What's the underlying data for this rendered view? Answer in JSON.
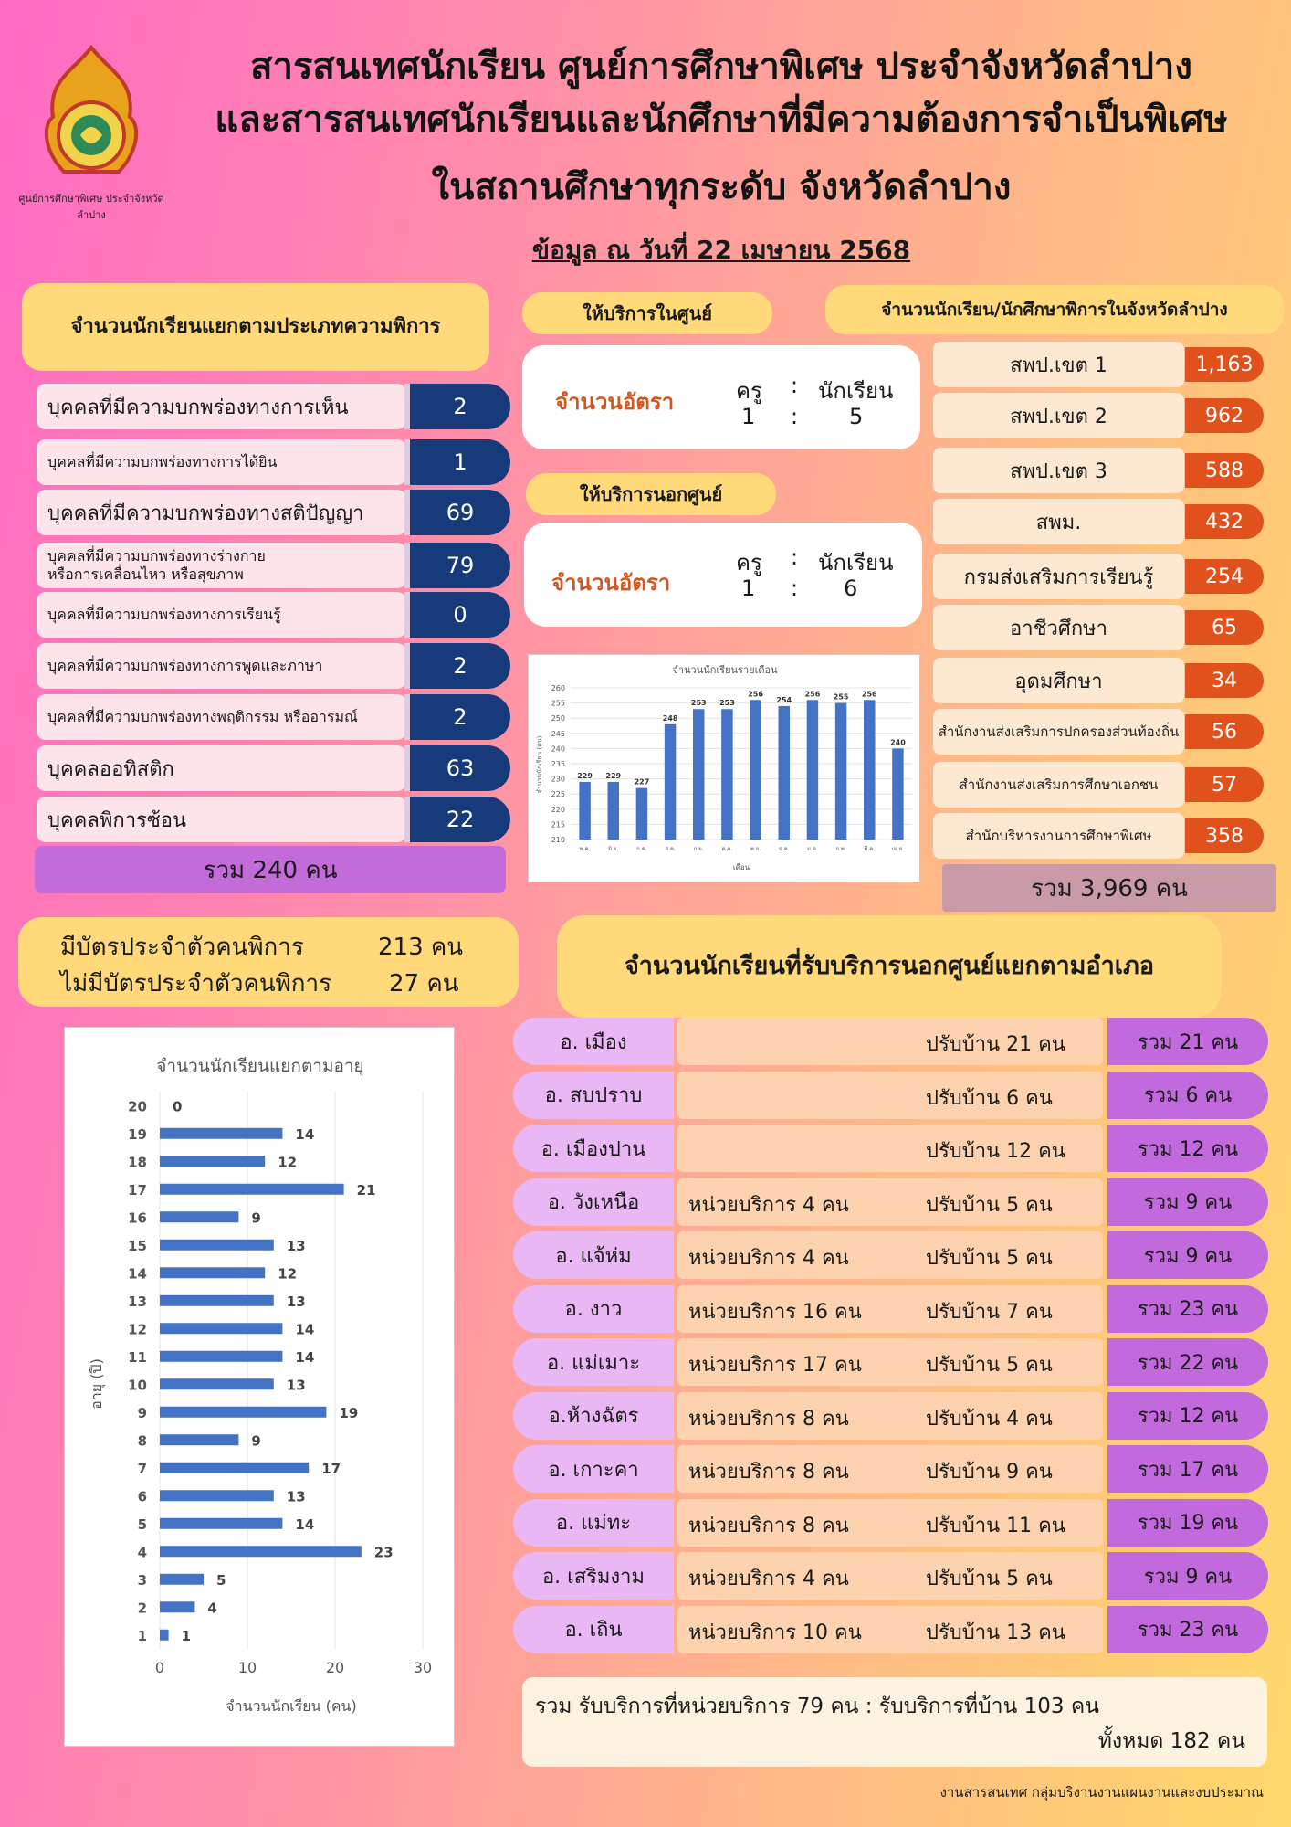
{
  "header": {
    "logo_text": "ศูนย์การศึกษาพิเศษ ประจำจังหวัดลำปาง",
    "title_line1": "สารสนเทศนักเรียน ศูนย์การศึกษาพิเศษ ประจำจังหวัดลำปาง",
    "title_line2": "และสารสนเทศนักเรียนและนักศึกษาที่มีความต้องการจำเป็นพิเศษ",
    "title_line3": "ในสถานศึกษาทุกระดับ จังหวัดลำปาง",
    "date": "ข้อมูล ณ วันที่ 22 เมษายน 2568"
  },
  "disability": {
    "heading": "จำนวนนักเรียนแยกตามประเภทความพิการ",
    "rows": [
      {
        "label": "บุคคลที่มีความบกพร่องทางการเห็น",
        "value": "2"
      },
      {
        "label": "บุคคลที่มีความบกพร่องทางการได้ยิน",
        "value": "1"
      },
      {
        "label": "บุคคลที่มีความบกพร่องทางสติปัญญา",
        "value": "69"
      },
      {
        "label": "บุคคลที่มีความบกพร่องทางร่างกาย\nหรือการเคลื่อนไหว หรือสุขภาพ",
        "value": "79"
      },
      {
        "label": "บุคคลที่มีความบกพร่องทางการเรียนรู้",
        "value": "0"
      },
      {
        "label": "บุคคลที่มีความบกพร่องทางการพูดและภาษา",
        "value": "2"
      },
      {
        "label": "บุคคลที่มีความบกพร่องทางพฤติกรรม หรืออารมณ์",
        "value": "2"
      },
      {
        "label": "บุคคลออทิสติก",
        "value": "63"
      },
      {
        "label": "บุคคลพิการซ้อน",
        "value": "22"
      }
    ],
    "total": "รวม   240 คน"
  },
  "card_status": {
    "with_card_label": "มีบัตรประจำตัวคนพิการ",
    "with_card_value": "213 คน",
    "without_card_label": "ไม่มีบัตรประจำตัวคนพิการ",
    "without_card_value": "27  คน"
  },
  "in_center": {
    "heading": "ให้บริการในศูนย์",
    "ratio_label": "จำนวนอัตรา",
    "teacher_label": "ครู",
    "student_label": "นักเรียน",
    "colon": ":",
    "teacher_value": "1",
    "student_value": "5"
  },
  "out_center": {
    "heading": "ให้บริการนอกศูนย์",
    "ratio_label": "จำนวนอัตรา",
    "teacher_label": "ครู",
    "student_label": "นักเรียน",
    "colon": ":",
    "teacher_value": "1",
    "student_value": "6"
  },
  "province": {
    "heading": "จำนวนนักเรียน/นักศึกษาพิการในจังหวัดลำปาง",
    "rows": [
      {
        "label": "สพป.เขต 1",
        "value": "1,163"
      },
      {
        "label": "สพป.เขต 2",
        "value": "962"
      },
      {
        "label": "สพป.เขต 3",
        "value": "588"
      },
      {
        "label": "สพม.",
        "value": "432"
      },
      {
        "label": "กรมส่งเสริมการเรียนรู้",
        "value": "254"
      },
      {
        "label": "อาชีวศึกษา",
        "value": "65"
      },
      {
        "label": "อุดมศึกษา",
        "value": "34"
      },
      {
        "label": "สำนักงานส่งเสริมการปกครองส่วนท้องถิ่น",
        "value": "56"
      },
      {
        "label": "สำนักงานส่งเสริมการศึกษาเอกชน",
        "value": "57"
      },
      {
        "label": "สำนักบริหารงานการศึกษาพิเศษ",
        "value": "358"
      }
    ],
    "total": "รวม 3,969 คน"
  },
  "districts": {
    "heading": "จำนวนนักเรียนที่รับบริการนอกศูนย์แยกตามอำเภอ",
    "rows": [
      {
        "name": "อ. เมือง",
        "unit": "",
        "home": "ปรับบ้าน 21 คน",
        "total": "รวม   21 คน"
      },
      {
        "name": "อ. สบปราบ",
        "unit": "",
        "home": "ปรับบ้าน 6 คน",
        "total": "รวม   6 คน"
      },
      {
        "name": "อ. เมืองปาน",
        "unit": "",
        "home": "ปรับบ้าน 12 คน",
        "total": "รวม   12 คน"
      },
      {
        "name": "อ. วังเหนือ",
        "unit": "หน่วยบริการ 4 คน",
        "home": "ปรับบ้าน 5 คน",
        "total": "รวม   9 คน"
      },
      {
        "name": "อ. แจ้ห่ม",
        "unit": "หน่วยบริการ  4 คน",
        "home": "ปรับบ้าน  5 คน",
        "total": "รวม   9 คน"
      },
      {
        "name": "อ. งาว",
        "unit": "หน่วยบริการ 16 คน",
        "home": "ปรับบ้าน  7 คน",
        "total": "รวม   23 คน"
      },
      {
        "name": "อ. แม่เมาะ",
        "unit": "หน่วยบริการ 17 คน",
        "home": "ปรับบ้าน  5 คน",
        "total": "รวม   22 คน"
      },
      {
        "name": "อ.ห้างฉัตร",
        "unit": "หน่วยบริการ  8 คน",
        "home": "ปรับบ้าน  4 คน",
        "total": "รวม   12 คน"
      },
      {
        "name": "อ. เกาะคา",
        "unit": "หน่วยบริการ  8 คน",
        "home": "ปรับบ้าน   9 คน",
        "total": "รวม   17 คน"
      },
      {
        "name": "อ. แม่ทะ",
        "unit": "หน่วยบริการ 8 คน",
        "home": "ปรับบ้าน 11 คน",
        "total": "รวม  19 คน"
      },
      {
        "name": "อ. เสริมงาม",
        "unit": "หน่วยบริการ 4 คน",
        "home": "ปรับบ้าน  5 คน",
        "total": "รวม   9 คน"
      },
      {
        "name": "อ. เถิน",
        "unit": "หน่วยบริการ 10 คน",
        "home": "ปรับบ้าน  13 คน",
        "total": "รวม   23 คน"
      }
    ],
    "summary_line1": "รวม รับบริการที่หน่วยบริการ 79 คน : รับบริการที่บ้าน 103 คน",
    "summary_line2": "ทั้งหมด 182 คน"
  },
  "footer": "งานสารสนเทศ กลุ่มบริงานงานแผนงานและงบประมาณ",
  "chart_data": [
    {
      "type": "bar",
      "title": "จำนวนนักเรียนรายเดือน",
      "xlabel": "เดือน",
      "ylabel": "จำนวนนักเรียน (คน)",
      "categories": [
        "พ.ค.",
        "มิ.ย.",
        "ก.ค.",
        "ส.ค.",
        "ก.ย.",
        "ต.ค.",
        "พ.ย.",
        "ธ.ค.",
        "ม.ค.",
        "ก.พ.",
        "มี.ค.",
        "เม.ย."
      ],
      "values": [
        229,
        229,
        227,
        248,
        253,
        253,
        256,
        254,
        256,
        255,
        256,
        240
      ],
      "ylim": [
        210,
        260
      ],
      "yticks": [
        210,
        215,
        220,
        225,
        230,
        235,
        240,
        245,
        250,
        255,
        260
      ],
      "color": "#4472c4"
    },
    {
      "type": "bar",
      "orientation": "horizontal",
      "title": "จำนวนนักเรียนแยกตามอายุ",
      "xlabel": "จำนวนนักเรียน (คน)",
      "ylabel": "อายุ (ปี)",
      "categories": [
        "1",
        "2",
        "3",
        "4",
        "5",
        "6",
        "7",
        "8",
        "9",
        "10",
        "11",
        "12",
        "13",
        "14",
        "15",
        "16",
        "17",
        "18",
        "19",
        "20"
      ],
      "values": [
        1,
        4,
        5,
        23,
        14,
        13,
        17,
        9,
        19,
        13,
        14,
        14,
        13,
        12,
        13,
        9,
        21,
        12,
        14,
        0
      ],
      "xlim": [
        0,
        30
      ],
      "xticks": [
        0,
        10,
        20,
        30
      ],
      "color": "#4472c4"
    }
  ]
}
